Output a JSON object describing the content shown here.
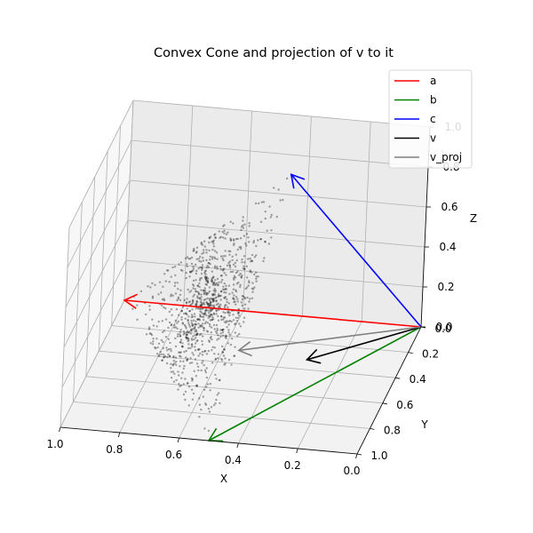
{
  "chart_data": {
    "type": "3d-scatter-with-vectors",
    "title": "Convex Cone and projection of v to it",
    "xlabel": "X",
    "ylabel": "Y",
    "zlabel": "Z",
    "x_ticks": [
      "0.0",
      "0.2",
      "0.4",
      "0.6",
      "0.8",
      "1.0"
    ],
    "y_ticks": [
      "0.0",
      "0.2",
      "0.4",
      "0.6",
      "0.8",
      "1.0"
    ],
    "z_ticks": [
      "0.0",
      "0.2",
      "0.4",
      "0.6",
      "0.8",
      "1.0"
    ],
    "xlim": [
      0,
      1
    ],
    "ylim": [
      0,
      1
    ],
    "zlim": [
      0,
      1
    ],
    "grid": true,
    "legend_placement": "top-right",
    "vectors": [
      {
        "name": "a",
        "color": "#ff0000",
        "start": [
          0,
          0,
          0
        ],
        "end": [
          1.0,
          0.0,
          0.0
        ]
      },
      {
        "name": "b",
        "color": "#008000",
        "start": [
          0,
          0,
          0
        ],
        "end": [
          0.5,
          1.0,
          0.0
        ]
      },
      {
        "name": "c",
        "color": "#0000ff",
        "start": [
          0,
          0,
          0
        ],
        "end": [
          0.4,
          0.3,
          0.9
        ]
      },
      {
        "name": "v",
        "color": "#000000",
        "start": [
          0,
          0,
          0
        ],
        "end": [
          0.3,
          0.4,
          0.05
        ]
      },
      {
        "name": "v_proj",
        "color": "#808080",
        "start": [
          0,
          0,
          0
        ],
        "end": [
          0.55,
          0.3,
          0.0
        ]
      }
    ],
    "point_cloud": {
      "color": "#000000",
      "count": 1000,
      "description_source": "convex combinations of a, b, c"
    }
  }
}
